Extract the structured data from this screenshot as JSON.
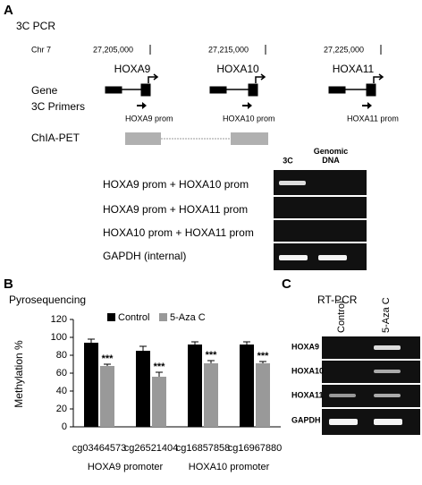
{
  "panel_a": {
    "label": "A",
    "title": "3C PCR",
    "chromosome": "Chr 7",
    "coordinates": [
      "27,205,000",
      "27,215,000",
      "27,225,000"
    ],
    "genes": [
      "HOXA9",
      "HOXA10",
      "HOXA11"
    ],
    "track_labels": [
      "Gene",
      "3C Primers",
      "ChIA-PET"
    ],
    "primers": [
      "HOXA9 prom",
      "HOXA10 prom",
      "HOXA11 prom"
    ],
    "gel": {
      "lanes": [
        "3C",
        "Genomic DNA"
      ],
      "rows": [
        "HOXA9 prom + HOXA10 prom",
        "HOXA9 prom + HOXA11 prom",
        "HOXA10 prom + HOXA11 prom",
        "GAPDH (internal)"
      ]
    }
  },
  "panel_b": {
    "label": "B",
    "title": "Pyrosequencing"
  },
  "chart_data": {
    "type": "bar",
    "ylabel": "Methylation %",
    "categories": [
      "cg03464573",
      "cg26521404",
      "cg16857858",
      "cg16967880"
    ],
    "series": [
      {
        "name": "Control",
        "color": "#000000",
        "values": [
          94,
          85,
          92,
          92
        ],
        "errors": [
          4,
          5,
          3,
          3
        ]
      },
      {
        "name": "5-Aza C",
        "color": "#999999",
        "values": [
          68,
          56,
          71,
          71
        ],
        "errors": [
          2,
          5,
          3,
          2
        ]
      }
    ],
    "annotations": [
      "***",
      "***",
      "***",
      "***"
    ],
    "group_labels": [
      "HOXA9 promoter",
      "HOXA10 promoter"
    ],
    "ylim": [
      0,
      120
    ],
    "yticks": [
      0,
      20,
      40,
      60,
      80,
      100,
      120
    ],
    "legend": "top"
  },
  "panel_c": {
    "label": "C",
    "title": "RT-PCR",
    "gel": {
      "lanes": [
        "Control",
        "5-Aza C"
      ],
      "rows": [
        "HOXA9",
        "HOXA10",
        "HOXA11",
        "GAPDH"
      ]
    }
  }
}
